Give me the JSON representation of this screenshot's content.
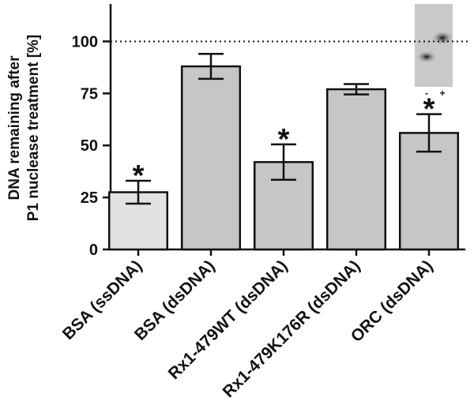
{
  "chart_data": {
    "type": "bar",
    "ylabel": [
      "DNA remaining after",
      "P1 nuclease treatment [%]"
    ],
    "categories": [
      "BSA (ssDNA)",
      "BSA (dsDNA)",
      "Rx1-479WT (dsDNA)",
      "Rx1-479K176R (dsDNA)",
      "ORC (dsDNA)"
    ],
    "values": [
      27.5,
      88,
      42,
      77,
      56
    ],
    "errors": [
      5.5,
      6,
      8.5,
      2.5,
      9
    ],
    "colors": [
      "#e2e2e2",
      "#c6c6c6",
      "#c6c6c6",
      "#c6c6c6",
      "#c6c6c6"
    ],
    "significance": [
      "*",
      null,
      "*",
      null,
      "*"
    ],
    "reference_line": 100,
    "inset": {
      "labels": [
        "-",
        "+"
      ]
    },
    "ylim": [
      0,
      118
    ],
    "yticks": [
      0,
      25,
      50,
      75,
      100
    ]
  }
}
